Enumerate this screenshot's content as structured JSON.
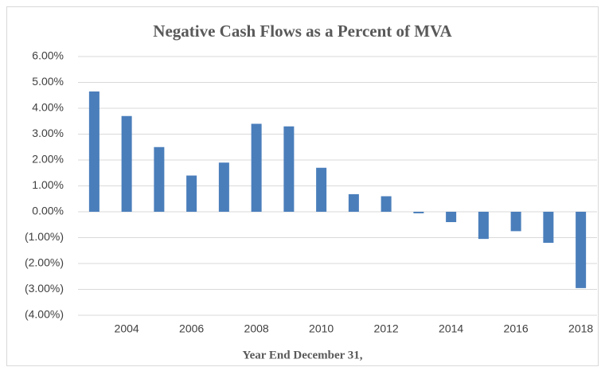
{
  "chart_data": {
    "type": "bar",
    "title": "Negative Cash Flows as a Percent of MVA",
    "x_label": "Year End December 31,",
    "categories": [
      null,
      "2004",
      null,
      "2006",
      null,
      "2008",
      null,
      "2010",
      null,
      "2012",
      null,
      "2014",
      null,
      "2016",
      null,
      "2018"
    ],
    "values": [
      4.65,
      3.7,
      2.5,
      1.4,
      1.9,
      3.4,
      3.3,
      1.7,
      0.68,
      0.6,
      -0.06,
      -0.4,
      -1.05,
      -0.75,
      -1.2,
      -2.95
    ],
    "color": "#4a7ebb",
    "ylim": [
      -4,
      6
    ],
    "yticks": [
      {
        "value": -4,
        "label": "(4.00%)"
      },
      {
        "value": -3,
        "label": "(3.00%)"
      },
      {
        "value": -2,
        "label": "(2.00%)"
      },
      {
        "value": -1,
        "label": "(1.00%)"
      },
      {
        "value": 0,
        "label": "0.00%"
      },
      {
        "value": 1,
        "label": "1.00%"
      },
      {
        "value": 2,
        "label": "2.00%"
      },
      {
        "value": 3,
        "label": "3.00%"
      },
      {
        "value": 4,
        "label": "4.00%"
      },
      {
        "value": 5,
        "label": "5.00%"
      },
      {
        "value": 6,
        "label": "6.00%"
      }
    ],
    "grid": true
  }
}
